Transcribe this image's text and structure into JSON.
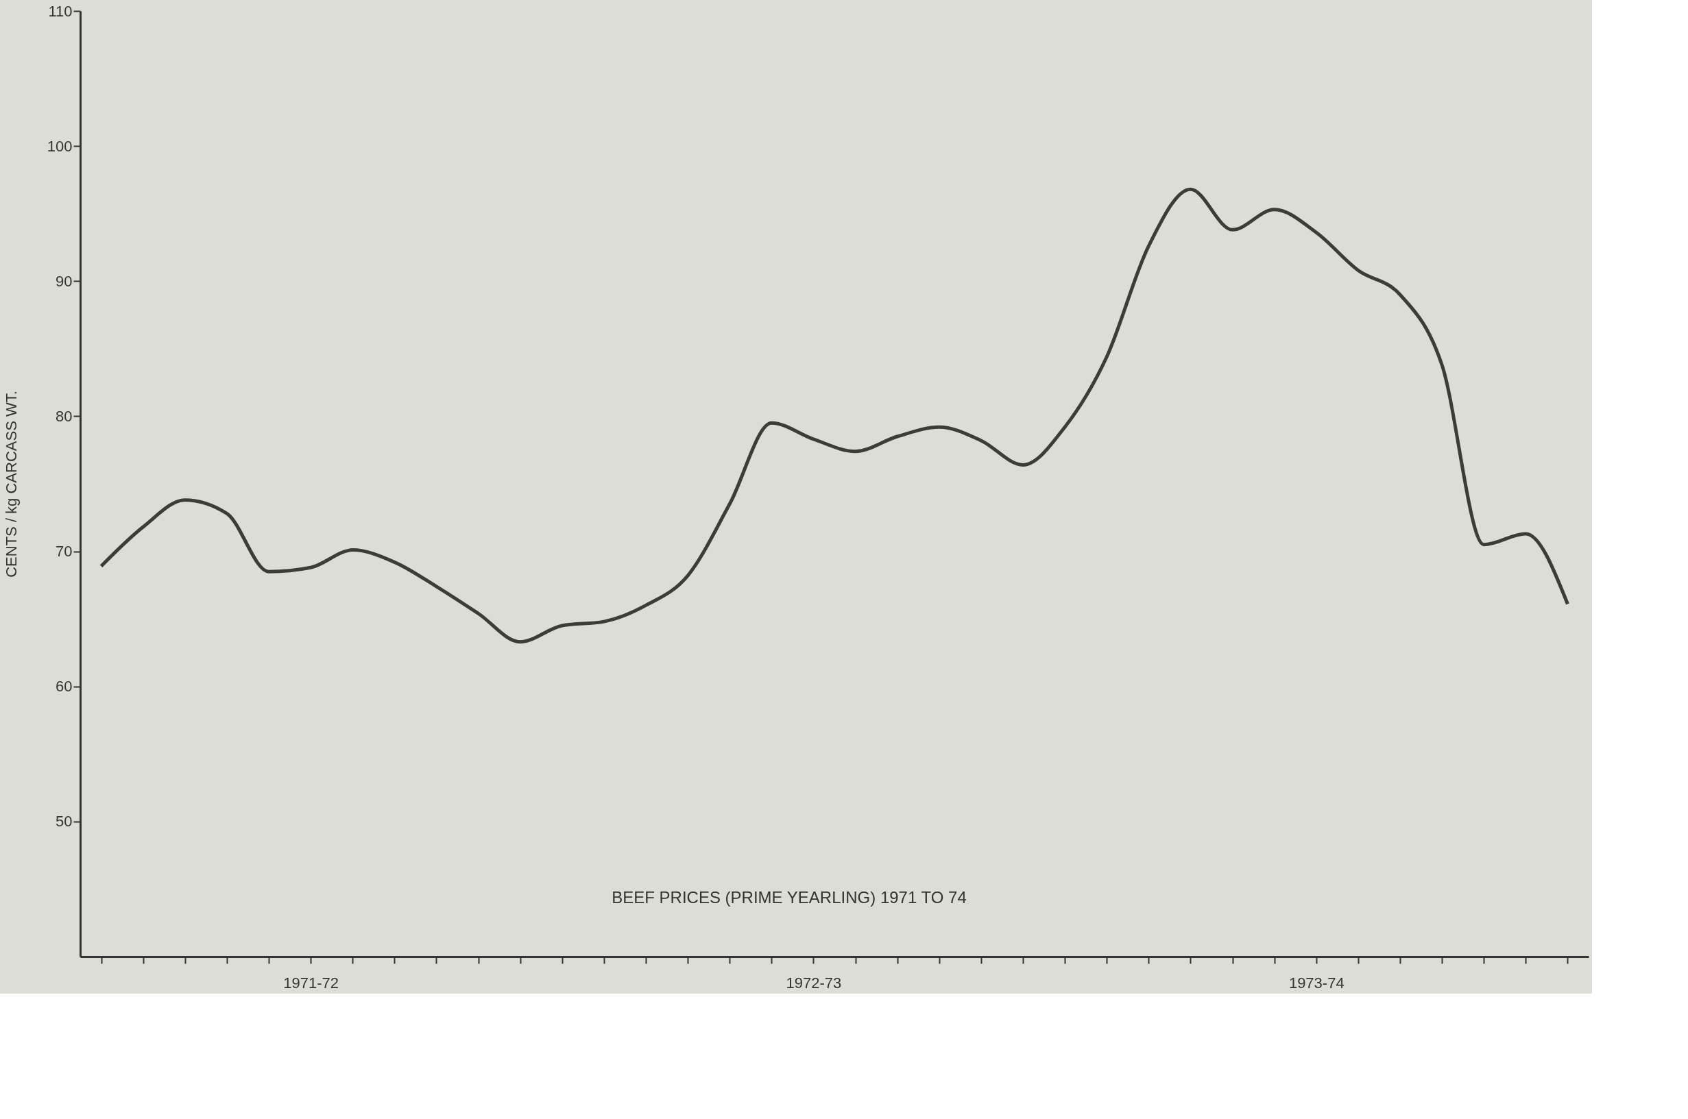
{
  "chart_data": {
    "type": "line",
    "title": "BEEF PRICES (PRIME YEARLING) 1971 TO 74",
    "ylabel": "CENTS / kg CARCASS WT.",
    "categories": [
      null,
      null,
      null,
      null,
      null,
      "1971-72",
      null,
      null,
      null,
      null,
      null,
      null,
      null,
      null,
      null,
      null,
      null,
      "1972-73",
      null,
      null,
      null,
      null,
      null,
      null,
      null,
      null,
      null,
      null,
      null,
      "1973-74",
      null,
      null,
      null,
      null,
      null,
      null
    ],
    "series": [
      {
        "color": "#3a3d38",
        "values": [
          68.9,
          71.8,
          73.8,
          72.8,
          68.5,
          68.8,
          70.1,
          69.2,
          67.4,
          65.4,
          63.3,
          64.5,
          64.8,
          66.0,
          68.2,
          73.5,
          79.5,
          78.3,
          77.4,
          78.5,
          79.2,
          78.2,
          76.4,
          79.2,
          84.4,
          92.6,
          96.8,
          93.8,
          95.3,
          93.6,
          90.8,
          89.0,
          83.8,
          70.5,
          71.3,
          66.1
        ]
      }
    ],
    "ylim": [
      40,
      110
    ],
    "yticks": [
      50,
      60,
      70,
      80,
      90,
      100,
      110
    ],
    "grid": false,
    "legend": false,
    "marker": "none",
    "line_style": "solid"
  }
}
